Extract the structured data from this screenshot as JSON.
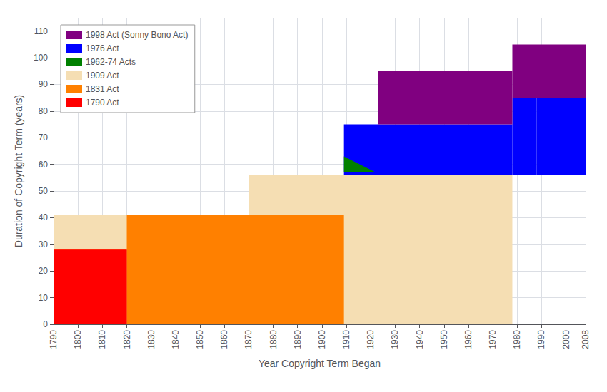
{
  "chart_data": {
    "type": "area",
    "xlabel": "Year Copyright Term Began",
    "ylabel": "Duration of Copyright Term (years)",
    "xlim": [
      1790,
      2008
    ],
    "ylim": [
      0,
      115
    ],
    "xticks": [
      1790,
      1800,
      1810,
      1820,
      1830,
      1840,
      1850,
      1860,
      1870,
      1880,
      1890,
      1900,
      1910,
      1920,
      1930,
      1940,
      1950,
      1960,
      1970,
      1980,
      1990,
      2000,
      2008
    ],
    "yticks": [
      0,
      10,
      20,
      30,
      40,
      50,
      60,
      70,
      80,
      90,
      100,
      110
    ],
    "grid": true,
    "legend": "upper left",
    "series": [
      {
        "name": "1998 Act (Sonny Bono Act)",
        "color": "#800080",
        "shapes": [
          {
            "x": [
              1923,
              1978,
              1978,
              1923
            ],
            "y": [
              75,
              75,
              95,
              95
            ]
          },
          {
            "x": [
              1978,
              2008,
              2008,
              1978
            ],
            "y": [
              85,
              85,
              105,
              105
            ]
          }
        ]
      },
      {
        "name": "1976 Act",
        "color": "#0000ff",
        "shapes": [
          {
            "x": [
              1909,
              1978,
              1978,
              1909
            ],
            "y": [
              56,
              56,
              75,
              75
            ]
          },
          {
            "x": [
              1978,
              1988,
              1988,
              1978
            ],
            "y": [
              56,
              56,
              85,
              85
            ]
          },
          {
            "x": [
              1988,
              2008,
              2008,
              1988
            ],
            "y": [
              56,
              56,
              85,
              85
            ]
          }
        ]
      },
      {
        "name": "1962-74 Acts",
        "color": "#008000",
        "shapes": [
          {
            "x": [
              1909,
              1909,
              1922
            ],
            "y": [
              57,
              63,
              57
            ]
          }
        ]
      },
      {
        "name": "1909 Act",
        "color": "#f5deb3",
        "shapes": [
          {
            "x": [
              1790,
              1870,
              1870,
              1790
            ],
            "y": [
              0,
              0,
              41,
              41
            ]
          },
          {
            "x": [
              1870,
              1978,
              1978,
              1870
            ],
            "y": [
              0,
              0,
              56,
              56
            ]
          }
        ]
      },
      {
        "name": "1831 Act",
        "color": "#ff8000",
        "shapes": [
          {
            "x": [
              1790,
              1820,
              1820,
              1790
            ],
            "y": [
              0,
              0,
              28,
              28
            ]
          },
          {
            "x": [
              1820,
              1909,
              1909,
              1820
            ],
            "y": [
              0,
              0,
              41,
              41
            ]
          }
        ]
      },
      {
        "name": "1790 Act",
        "color": "#ff0000",
        "shapes": [
          {
            "x": [
              1790,
              1820,
              1820,
              1790
            ],
            "y": [
              0,
              0,
              28,
              28
            ]
          }
        ]
      }
    ]
  }
}
